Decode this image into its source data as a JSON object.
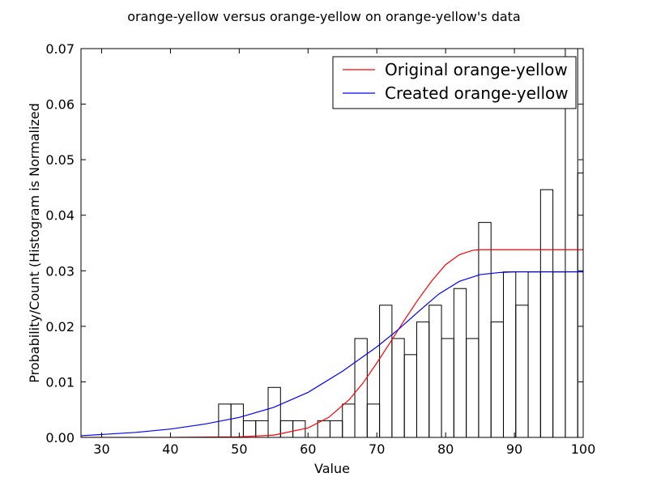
{
  "chart_data": {
    "type": "bar",
    "title": "orange-yellow versus orange-yellow on orange-yellow's data",
    "xlabel": "Value",
    "ylabel": "Probability/Count (Histogram is Normalized",
    "xlim": [
      27,
      100
    ],
    "ylim": [
      0,
      0.07
    ],
    "xticks": [
      "30",
      "40",
      "50",
      "60",
      "70",
      "80",
      "90",
      "100"
    ],
    "yticks": [
      "0.00",
      "0.01",
      "0.02",
      "0.03",
      "0.04",
      "0.05",
      "0.06",
      "0.07"
    ],
    "grid": false,
    "legend_position": "top-right",
    "histogram": {
      "bin_width": 1.8,
      "bins": [
        {
          "left": 47.0,
          "value": 0.006
        },
        {
          "left": 48.8,
          "value": 0.006
        },
        {
          "left": 50.6,
          "value": 0.003
        },
        {
          "left": 52.4,
          "value": 0.003
        },
        {
          "left": 54.2,
          "value": 0.009
        },
        {
          "left": 56.0,
          "value": 0.003
        },
        {
          "left": 57.8,
          "value": 0.003
        },
        {
          "left": 59.6,
          "value": 0.0
        },
        {
          "left": 61.4,
          "value": 0.003
        },
        {
          "left": 63.2,
          "value": 0.003
        },
        {
          "left": 65.0,
          "value": 0.006
        },
        {
          "left": 66.8,
          "value": 0.0178
        },
        {
          "left": 68.6,
          "value": 0.006
        },
        {
          "left": 70.4,
          "value": 0.0238
        },
        {
          "left": 72.2,
          "value": 0.0178
        },
        {
          "left": 74.0,
          "value": 0.0149
        },
        {
          "left": 75.8,
          "value": 0.0208
        },
        {
          "left": 77.6,
          "value": 0.0238
        },
        {
          "left": 79.4,
          "value": 0.0178
        },
        {
          "left": 81.2,
          "value": 0.0268
        },
        {
          "left": 83.0,
          "value": 0.0178
        },
        {
          "left": 84.8,
          "value": 0.0387
        },
        {
          "left": 86.6,
          "value": 0.0208
        },
        {
          "left": 88.4,
          "value": 0.0298
        },
        {
          "left": 90.2,
          "value": 0.0238
        },
        {
          "left": 92.0,
          "value": 0.0298
        },
        {
          "left": 93.8,
          "value": 0.0446
        },
        {
          "left": 95.6,
          "value": 0.0298
        },
        {
          "left": 97.4,
          "value": 0.0714
        },
        {
          "left": 99.2,
          "value": 0.0476
        }
      ]
    },
    "series": [
      {
        "name": "Original orange-yellow",
        "color": "#ff0000",
        "x": [
          27,
          40,
          50,
          55,
          60,
          63,
          66,
          68,
          70,
          72,
          74,
          76,
          78,
          80,
          82,
          84,
          85,
          87,
          90,
          95,
          100
        ],
        "y": [
          0.0,
          0.0,
          0.0001,
          0.0004,
          0.0017,
          0.0036,
          0.0068,
          0.0098,
          0.0134,
          0.0172,
          0.0211,
          0.0248,
          0.0282,
          0.0311,
          0.0329,
          0.0337,
          0.0338,
          0.0338,
          0.0338,
          0.0338,
          0.0338
        ]
      },
      {
        "name": "Created orange-yellow",
        "color": "#0000ff",
        "x": [
          27,
          35,
          40,
          45,
          50,
          55,
          60,
          65,
          70,
          73,
          76,
          79,
          82,
          85,
          88,
          90,
          95,
          100
        ],
        "y": [
          0.0003,
          0.0009,
          0.0015,
          0.0024,
          0.0036,
          0.0054,
          0.0081,
          0.0119,
          0.0163,
          0.0193,
          0.0226,
          0.0258,
          0.0281,
          0.0293,
          0.0297,
          0.0298,
          0.0298,
          0.0298
        ]
      }
    ]
  }
}
